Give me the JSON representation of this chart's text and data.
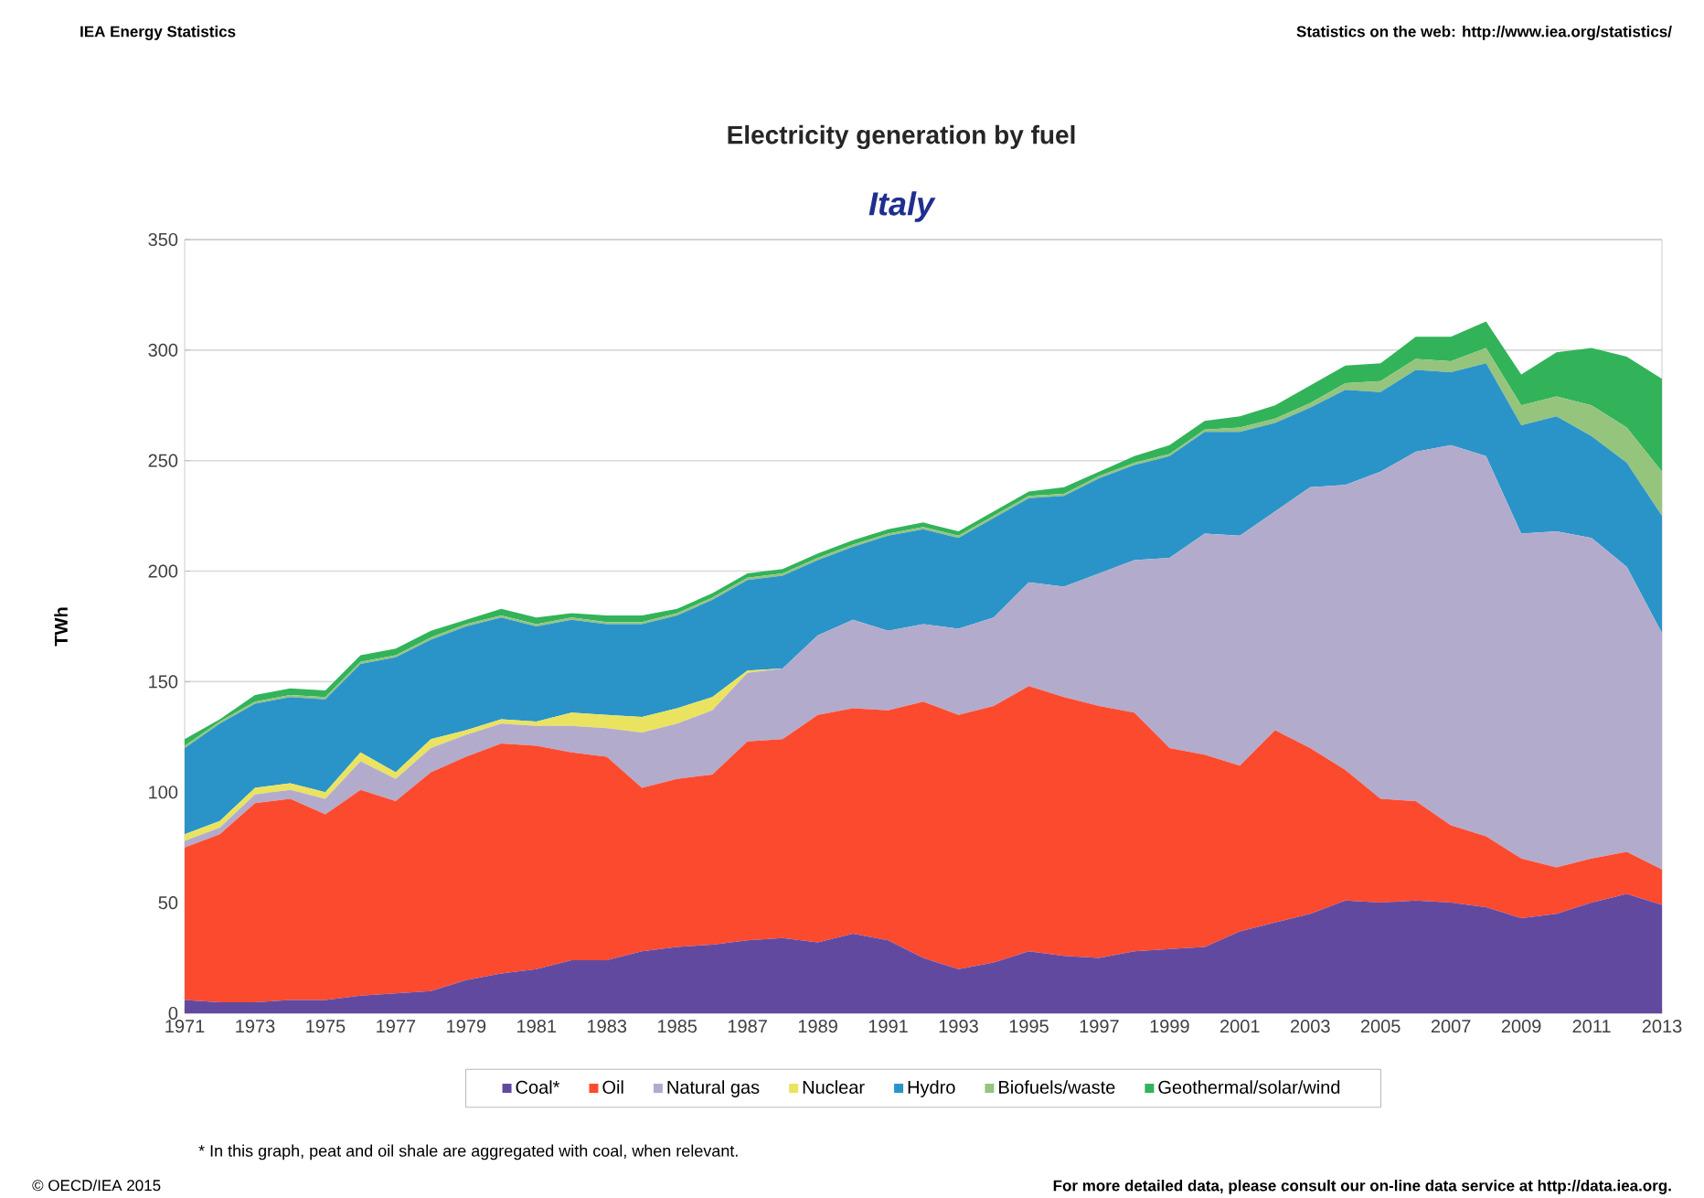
{
  "chart_data": {
    "type": "area",
    "stacked": true,
    "title": "Electricity generation by fuel",
    "subtitle": "Italy",
    "ylabel": "TWh",
    "annotations": [
      "IEA Energy Statistics",
      "Statistics on the web: http://www.iea.org/statistics/",
      "* In this graph, peat and oil shale are aggregated with coal, when relevant.",
      "© OECD/IEA 2015",
      "For more detailed data, please consult our on-line data service at http://data.iea.org."
    ],
    "x": [
      1971,
      1972,
      1973,
      1974,
      1975,
      1976,
      1977,
      1978,
      1979,
      1980,
      1981,
      1982,
      1983,
      1984,
      1985,
      1986,
      1987,
      1988,
      1989,
      1990,
      1991,
      1992,
      1993,
      1994,
      1995,
      1996,
      1997,
      1998,
      1999,
      2000,
      2001,
      2002,
      2003,
      2004,
      2005,
      2006,
      2007,
      2008,
      2009,
      2010,
      2011,
      2012,
      2013
    ],
    "xlim": [
      1971,
      2013
    ],
    "xticks": [
      1971,
      1973,
      1975,
      1977,
      1979,
      1981,
      1983,
      1985,
      1987,
      1989,
      1991,
      1993,
      1995,
      1997,
      1999,
      2001,
      2003,
      2005,
      2007,
      2009,
      2011,
      2013
    ],
    "ylim": [
      0,
      350
    ],
    "yticks": [
      0,
      50,
      100,
      150,
      200,
      250,
      300,
      350
    ],
    "grid": "y",
    "legend": "bottom",
    "series": [
      {
        "name": "Coal*",
        "color": "#6249a0",
        "values": [
          6,
          5,
          5,
          6,
          6,
          8,
          9,
          10,
          15,
          18,
          20,
          24,
          24,
          28,
          30,
          31,
          33,
          34,
          32,
          36,
          33,
          25,
          20,
          23,
          28,
          26,
          25,
          28,
          29,
          30,
          37,
          41,
          45,
          51,
          50,
          51,
          50,
          48,
          43,
          45,
          50,
          54,
          49
        ]
      },
      {
        "name": "Oil",
        "color": "#fc4a2f",
        "values": [
          69,
          76,
          90,
          91,
          84,
          93,
          87,
          99,
          101,
          104,
          101,
          94,
          92,
          74,
          76,
          77,
          90,
          90,
          103,
          102,
          104,
          116,
          115,
          116,
          120,
          117,
          114,
          108,
          91,
          87,
          75,
          87,
          75,
          59,
          47,
          45,
          35,
          32,
          27,
          21,
          20,
          19,
          16
        ]
      },
      {
        "name": "Natural gas",
        "color": "#b3abcc",
        "values": [
          3,
          3,
          4,
          4,
          7,
          13,
          10,
          11,
          10,
          9,
          9,
          12,
          13,
          25,
          25,
          29,
          31,
          32,
          36,
          40,
          36,
          35,
          39,
          40,
          47,
          50,
          60,
          69,
          86,
          100,
          104,
          99,
          118,
          129,
          148,
          158,
          172,
          172,
          147,
          152,
          145,
          129,
          107
        ]
      },
      {
        "name": "Nuclear",
        "color": "#eae360",
        "values": [
          3,
          3,
          3,
          3,
          3,
          4,
          3,
          4,
          2,
          2,
          2,
          6,
          6,
          7,
          7,
          6,
          1,
          0,
          0,
          0,
          0,
          0,
          0,
          0,
          0,
          0,
          0,
          0,
          0,
          0,
          0,
          0,
          0,
          0,
          0,
          0,
          0,
          0,
          0,
          0,
          0,
          0,
          0
        ]
      },
      {
        "name": "Hydro",
        "color": "#2a94c8",
        "values": [
          39,
          44,
          38,
          39,
          42,
          40,
          52,
          45,
          47,
          46,
          43,
          42,
          41,
          42,
          42,
          44,
          41,
          42,
          34,
          33,
          43,
          43,
          41,
          45,
          38,
          41,
          43,
          43,
          46,
          46,
          47,
          40,
          36,
          43,
          36,
          37,
          33,
          42,
          49,
          52,
          46,
          47,
          53
        ]
      },
      {
        "name": "Biofuels/waste",
        "color": "#95c47d",
        "values": [
          1,
          1,
          1,
          1,
          1,
          1,
          1,
          1,
          1,
          1,
          1,
          1,
          1,
          1,
          1,
          1,
          1,
          1,
          1,
          1,
          1,
          1,
          1,
          1,
          1,
          1,
          1,
          1,
          1,
          1,
          2,
          2,
          2,
          3,
          5,
          5,
          5,
          7,
          9,
          9,
          14,
          16,
          20
        ]
      },
      {
        "name": "Geothermal/solar/wind",
        "color": "#32b35a",
        "values": [
          3,
          1,
          3,
          3,
          3,
          3,
          3,
          3,
          2,
          3,
          3,
          2,
          3,
          3,
          2,
          2,
          2,
          2,
          2,
          2,
          2,
          2,
          2,
          2,
          2,
          3,
          2,
          3,
          4,
          4,
          5,
          6,
          8,
          8,
          8,
          10,
          11,
          12,
          14,
          20,
          26,
          32,
          42
        ]
      }
    ]
  }
}
